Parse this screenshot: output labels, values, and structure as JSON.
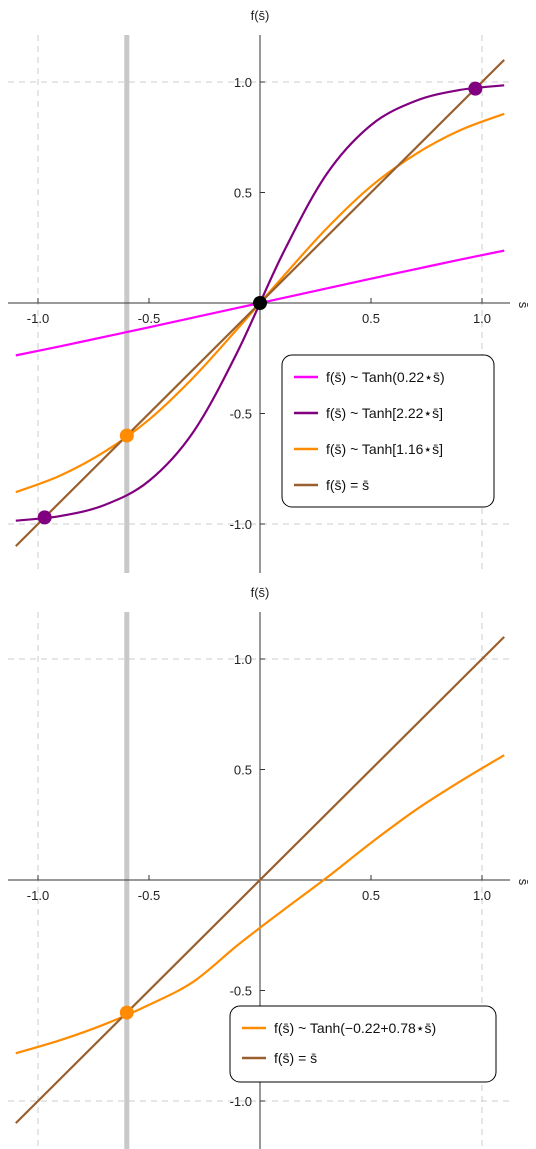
{
  "colors": {
    "magenta": "#ff00ff",
    "purple": "#800080",
    "orange": "#ff8c00",
    "brown": "#99602e",
    "black": "#000000",
    "grid": "#cccccc",
    "vline": "#c8c8c8"
  },
  "chart_data": [
    {
      "type": "line",
      "xlabel": "s̄",
      "ylabel": "f(s̄)",
      "xlim": [
        -1.1,
        1.1
      ],
      "ylim": [
        -1.2,
        1.2
      ],
      "xticks": [
        -1.0,
        -0.5,
        0.5,
        1.0
      ],
      "xtick_labels": [
        "-1.0",
        "-0.5",
        "0.5",
        "1.0"
      ],
      "yticks": [
        -1.0,
        -0.5,
        0.5,
        1.0
      ],
      "ytick_labels": [
        "-1.0",
        "-0.5",
        "0.5",
        "1.0"
      ],
      "grid_x": [
        -1.0,
        1.0
      ],
      "grid_y": [
        -1.0,
        1.0
      ],
      "vertical_line_x": -0.6,
      "legend_position": "center-right",
      "series": [
        {
          "name": "f(s̄) ~ Tanh(0.22⋆s̄)",
          "color": "#ff00ff",
          "x": [
            -1.1,
            -0.9,
            -0.7,
            -0.5,
            -0.3,
            -0.1,
            0.1,
            0.3,
            0.5,
            0.7,
            0.9,
            1.1
          ],
          "y": [
            -0.237,
            -0.196,
            -0.153,
            -0.11,
            -0.066,
            -0.022,
            0.022,
            0.066,
            0.11,
            0.153,
            0.196,
            0.237
          ]
        },
        {
          "name": "f(s̄) ~ Tanh[2.22⋆s̄]",
          "color": "#800080",
          "x": [
            -1.1,
            -0.9,
            -0.7,
            -0.5,
            -0.3,
            -0.1,
            0.1,
            0.3,
            0.5,
            0.7,
            0.9,
            1.1
          ],
          "y": [
            -0.985,
            -0.964,
            -0.914,
            -0.805,
            -0.583,
            -0.218,
            0.218,
            0.583,
            0.805,
            0.914,
            0.964,
            0.985
          ]
        },
        {
          "name": "f(s̄) ~ Tanh[1.16⋆s̄]",
          "color": "#ff8c00",
          "x": [
            -1.1,
            -0.9,
            -0.7,
            -0.5,
            -0.3,
            -0.1,
            0.1,
            0.3,
            0.5,
            0.7,
            0.9,
            1.1
          ],
          "y": [
            -0.856,
            -0.781,
            -0.673,
            -0.528,
            -0.337,
            -0.115,
            0.115,
            0.337,
            0.528,
            0.673,
            0.781,
            0.856
          ]
        },
        {
          "name": "f(s̄) = s̄",
          "color": "#99602e",
          "x": [
            -1.1,
            1.1
          ],
          "y": [
            -1.1,
            1.1
          ]
        }
      ],
      "points": [
        {
          "x": -0.97,
          "y": -0.97,
          "color": "#800080"
        },
        {
          "x": 0.97,
          "y": 0.97,
          "color": "#800080"
        },
        {
          "x": -0.6,
          "y": -0.6,
          "color": "#ff8c00"
        },
        {
          "x": 0.0,
          "y": 0.0,
          "color": "#000000"
        }
      ]
    },
    {
      "type": "line",
      "xlabel": "s̄",
      "ylabel": "f(s̄)",
      "xlim": [
        -1.1,
        1.1
      ],
      "ylim": [
        -1.25,
        1.25
      ],
      "xticks": [
        -1.0,
        -0.5,
        0.5,
        1.0
      ],
      "xtick_labels": [
        "-1.0",
        "-0.5",
        "0.5",
        "1.0"
      ],
      "yticks": [
        -1.0,
        -0.5,
        0.5,
        1.0
      ],
      "ytick_labels": [
        "-1.0",
        "-0.5",
        "0.5",
        "1.0"
      ],
      "grid_x": [
        -1.0,
        1.0
      ],
      "grid_y": [
        -1.0,
        1.0
      ],
      "vertical_line_x": -0.6,
      "legend_position": "bottom-right",
      "series": [
        {
          "name": "f(s̄) ~ Tanh(−0.22+0.78⋆s̄)",
          "color": "#ff8c00",
          "x": [
            -1.1,
            -0.9,
            -0.7,
            -0.5,
            -0.3,
            -0.1,
            0.1,
            0.3,
            0.5,
            0.7,
            0.9,
            1.1
          ],
          "y": [
            -0.784,
            -0.725,
            -0.653,
            -0.565,
            -0.46,
            -0.294,
            -0.14,
            0.01,
            0.168,
            0.316,
            0.445,
            0.565
          ]
        },
        {
          "name": "f(s̄) = s̄",
          "color": "#99602e",
          "x": [
            -1.1,
            1.1
          ],
          "y": [
            -1.1,
            1.1
          ]
        }
      ],
      "points": [
        {
          "x": -0.6,
          "y": -0.6,
          "color": "#ff8c00"
        }
      ]
    }
  ]
}
